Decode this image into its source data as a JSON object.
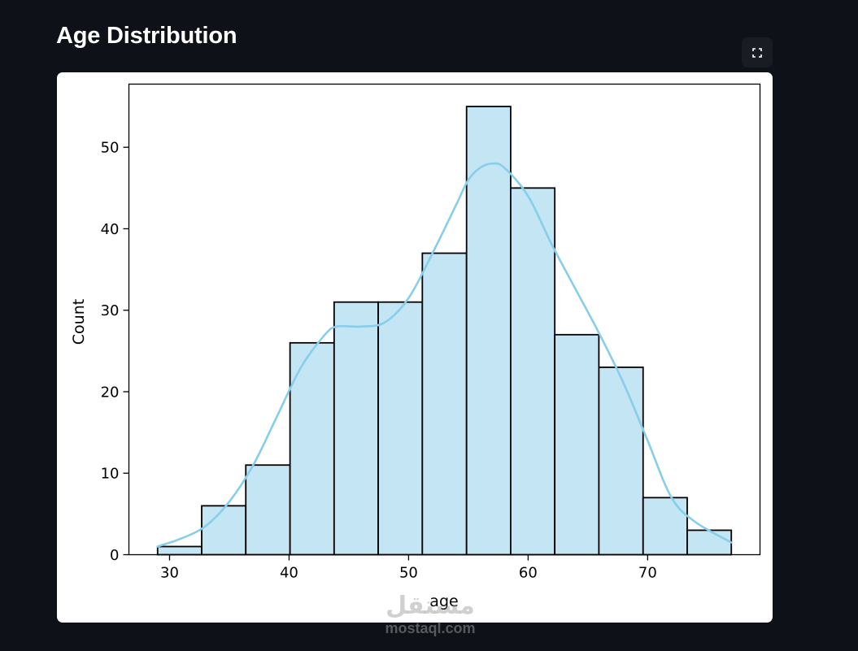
{
  "header": {
    "title": "Age Distribution",
    "fullscreen_icon": "fullscreen-icon"
  },
  "colors": {
    "background": "#0e1117",
    "bar_fill": "#c3e5f4",
    "bar_edge": "#000000",
    "kde_line": "#87ceeb"
  },
  "chart_data": {
    "type": "bar",
    "title": "",
    "xlabel": "age",
    "ylabel": "Count",
    "xlim": [
      26.6,
      79.4
    ],
    "ylim": [
      0,
      57.75
    ],
    "bin_edges": [
      29,
      32.69,
      36.38,
      40.08,
      43.77,
      47.46,
      51.15,
      54.85,
      58.54,
      62.23,
      65.92,
      69.62,
      73.31,
      77
    ],
    "values": [
      1,
      6,
      11,
      26,
      31,
      31,
      37,
      55,
      45,
      27,
      23,
      7,
      3
    ],
    "x_ticks": [
      30,
      40,
      50,
      60,
      70
    ],
    "x_tick_labels": [
      "30",
      "40",
      "50",
      "60",
      "70"
    ],
    "y_ticks": [
      0,
      10,
      20,
      30,
      40,
      50
    ],
    "y_tick_labels": [
      "0",
      "10",
      "20",
      "30",
      "40",
      "50"
    ],
    "kde": {
      "x": [
        29,
        31,
        33,
        35,
        37,
        39,
        41,
        43,
        44,
        46,
        48,
        50,
        52,
        54,
        55,
        56,
        57,
        58,
        60,
        62,
        64,
        66,
        68,
        70,
        72,
        74,
        77
      ],
      "y": [
        1,
        2,
        3.5,
        6.5,
        11,
        17,
        23,
        27,
        28,
        28,
        28.5,
        31.5,
        37,
        43,
        46,
        47.5,
        48,
        47.5,
        44,
        38,
        32.5,
        27,
        21,
        14,
        7,
        4,
        1.5
      ]
    }
  },
  "watermark": {
    "logo_text": "مستقل",
    "site_text": "mostaql.com"
  }
}
